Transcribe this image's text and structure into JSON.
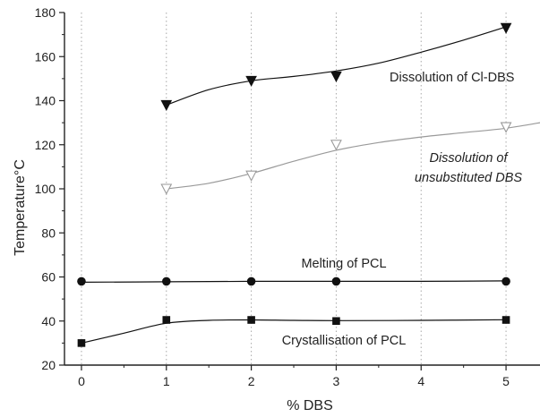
{
  "chart_data": {
    "type": "scatter",
    "xlabel": "% DBS",
    "ylabel": "Temperature°C",
    "xlim": [
      -0.2,
      5.4
    ],
    "ylim": [
      20,
      180
    ],
    "xticks": [
      0,
      1,
      2,
      3,
      4,
      5
    ],
    "yticks": [
      20,
      40,
      60,
      80,
      100,
      120,
      140,
      160,
      180
    ],
    "grid": "vertical-dotted",
    "series": [
      {
        "key": "cl_dbs",
        "x": [
          1,
          2,
          3,
          5
        ],
        "y": [
          138,
          149,
          151,
          173
        ],
        "marker": "triangle-down-filled",
        "color": "#111111",
        "curve_x": [
          1,
          1.5,
          2,
          2.5,
          3,
          3.5,
          4,
          4.5,
          5
        ],
        "curve_y": [
          138,
          145,
          149,
          151,
          153.5,
          157,
          162,
          167.5,
          173.5
        ],
        "annotation": "Dissolution of Cl-DBS"
      },
      {
        "key": "unsub_dbs",
        "x": [
          1,
          2,
          3,
          5
        ],
        "y": [
          100,
          106,
          120,
          128
        ],
        "marker": "triangle-down-open",
        "color": "#9a9a9a",
        "curve_x": [
          1,
          1.5,
          2,
          2.5,
          3,
          3.5,
          4,
          4.5,
          5,
          5.4
        ],
        "curve_y": [
          100,
          102.5,
          107,
          112.5,
          117.5,
          121,
          123.5,
          125.5,
          127.5,
          130
        ],
        "annotation": [
          "Dissolution of",
          "unsubstituted DBS"
        ]
      },
      {
        "key": "melting_pcl",
        "x": [
          0,
          1,
          2,
          3,
          5
        ],
        "y": [
          58,
          58,
          58,
          58,
          58
        ],
        "marker": "circle-filled",
        "color": "#111111",
        "curve_x": [
          0,
          1,
          2,
          3,
          4,
          5
        ],
        "curve_y": [
          57.6,
          57.8,
          58,
          58,
          58,
          58.2
        ],
        "annotation": "Melting of PCL"
      },
      {
        "key": "cryst_pcl",
        "x": [
          0,
          1,
          2,
          3,
          5
        ],
        "y": [
          30,
          40.5,
          40.5,
          40,
          40.5
        ],
        "marker": "square-filled",
        "color": "#111111",
        "curve_x": [
          0,
          0.5,
          1,
          1.5,
          2,
          2.5,
          3,
          4,
          5
        ],
        "curve_y": [
          30,
          34.5,
          39,
          40.3,
          40.5,
          40.3,
          40.2,
          40.3,
          40.6
        ],
        "annotation": "Crystallisation of PCL"
      }
    ]
  }
}
